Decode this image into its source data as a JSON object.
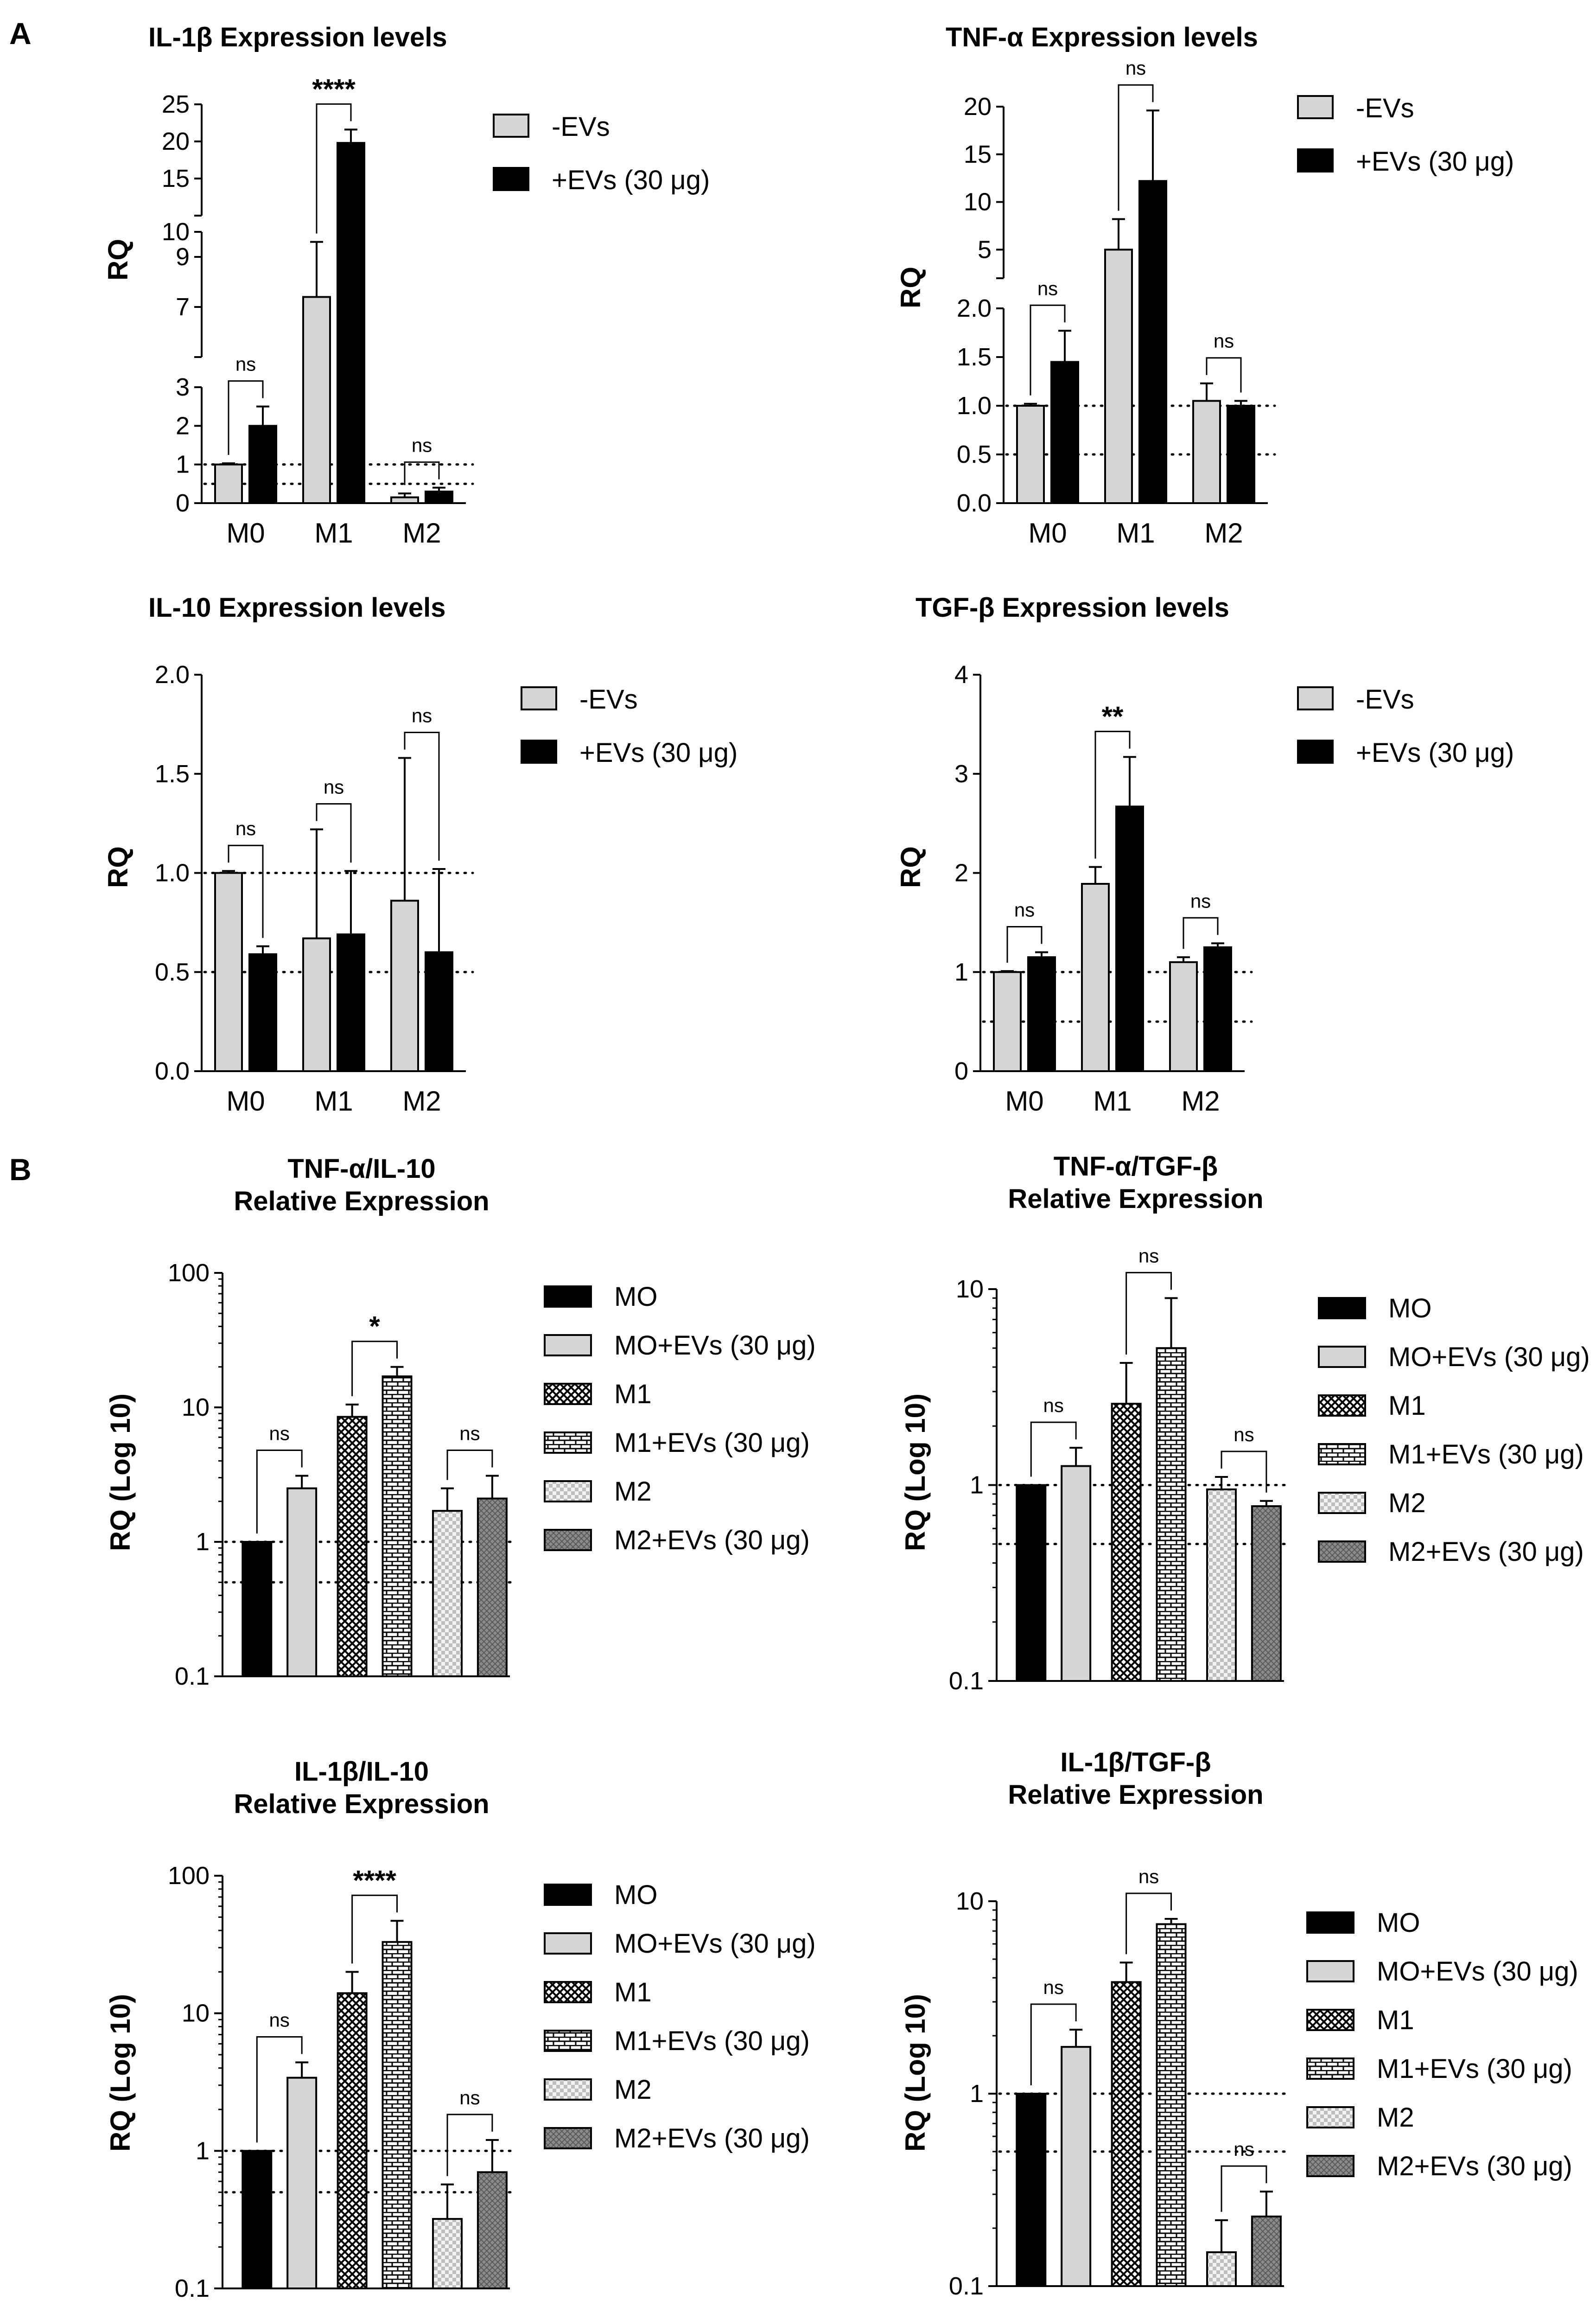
{
  "panels": [
    {
      "letter": "A"
    },
    {
      "letter": "B"
    }
  ],
  "colors": {
    "minus_evs": "#d6d6d6",
    "plus_evs": "#000000",
    "m2_fill": "#dadada",
    "m2ev_fill": "#7a7a7a"
  },
  "chart_data": [
    {
      "id": "il1b",
      "type": "bar",
      "title": "IL-1β Expression levels",
      "ylabel": "RQ",
      "categories": [
        "M0",
        "M1",
        "M2"
      ],
      "series": [
        {
          "name": "-EVs",
          "values": [
            1.0,
            7.4,
            0.15
          ],
          "errors": [
            0.03,
            2.2,
            0.1
          ]
        },
        {
          "name": "+EVs (30 μg)",
          "values": [
            2.0,
            19.8,
            0.3
          ],
          "errors": [
            0.5,
            1.8,
            0.1
          ]
        }
      ],
      "axis_segments": [
        {
          "range": [
            0,
            3
          ],
          "ticks": [
            "0",
            "1",
            "2",
            "3"
          ]
        },
        {
          "range": [
            5,
            10
          ],
          "ticks": [
            "7",
            "9"
          ]
        },
        {
          "range": [
            10,
            25
          ],
          "ticks": [
            "10",
            "15",
            "20",
            "25"
          ]
        }
      ],
      "reference_lines": [
        1,
        0.5
      ],
      "annotations": [
        {
          "groups": "M0",
          "label": "ns"
        },
        {
          "groups": "M1",
          "label": "****"
        },
        {
          "groups": "M2",
          "label": "ns"
        }
      ]
    },
    {
      "id": "tnfa",
      "type": "bar",
      "title": "TNF-α Expression levels",
      "ylabel": "RQ",
      "categories": [
        "M0",
        "M1",
        "M2"
      ],
      "series": [
        {
          "name": "-EVs",
          "values": [
            1.0,
            5.0,
            1.05
          ],
          "errors": [
            0.02,
            3.2,
            0.18
          ]
        },
        {
          "name": "+EVs (30 μg)",
          "values": [
            1.45,
            12.2,
            1.0
          ],
          "errors": [
            0.32,
            7.4,
            0.05
          ]
        }
      ],
      "axis_segments": [
        {
          "range": [
            0,
            2
          ],
          "ticks": [
            "0.0",
            "0.5",
            "1.0",
            "1.5",
            "2.0"
          ]
        },
        {
          "range": [
            2,
            20
          ],
          "ticks": [
            "5",
            "10",
            "15",
            "20"
          ]
        }
      ],
      "reference_lines": [
        1,
        0.5
      ],
      "annotations": [
        {
          "groups": "M0",
          "label": "ns"
        },
        {
          "groups": "M1",
          "label": "ns"
        },
        {
          "groups": "M2",
          "label": "ns"
        }
      ]
    },
    {
      "id": "il10",
      "type": "bar",
      "title": "IL-10 Expression levels",
      "ylabel": "RQ",
      "categories": [
        "M0",
        "M1",
        "M2"
      ],
      "series": [
        {
          "name": "-EVs",
          "values": [
            1.0,
            0.67,
            0.86
          ],
          "errors": [
            0.01,
            0.55,
            0.72
          ]
        },
        {
          "name": "+EVs (30 μg)",
          "values": [
            0.59,
            0.69,
            0.6
          ],
          "errors": [
            0.04,
            0.32,
            0.42
          ]
        }
      ],
      "ylim": [
        0,
        2.0
      ],
      "ticks": [
        "0.0",
        "0.5",
        "1.0",
        "1.5",
        "2.0"
      ],
      "reference_lines": [
        1,
        0.5
      ],
      "annotations": [
        {
          "groups": "M0",
          "label": "ns"
        },
        {
          "groups": "M1",
          "label": "ns"
        },
        {
          "groups": "M2",
          "label": "ns"
        }
      ]
    },
    {
      "id": "tgfb",
      "type": "bar",
      "title": "TGF-β Expression levels",
      "ylabel": "RQ",
      "categories": [
        "M0",
        "M1",
        "M2"
      ],
      "series": [
        {
          "name": "-EVs",
          "values": [
            1.0,
            1.89,
            1.1
          ],
          "errors": [
            0.01,
            0.17,
            0.05
          ]
        },
        {
          "name": "+EVs (30 μg)",
          "values": [
            1.15,
            2.67,
            1.25
          ],
          "errors": [
            0.05,
            0.5,
            0.04
          ]
        }
      ],
      "ylim": [
        0,
        4
      ],
      "ticks": [
        "0",
        "1",
        "2",
        "3",
        "4"
      ],
      "reference_lines": [
        1,
        0.5
      ],
      "annotations": [
        {
          "groups": "M0",
          "label": "ns"
        },
        {
          "groups": "M1",
          "label": "**"
        },
        {
          "groups": "M2",
          "label": "ns"
        }
      ]
    },
    {
      "id": "tnfa_il10",
      "type": "bar",
      "scale": "log10",
      "title": [
        "TNF-α/IL-10",
        "Relative Expression"
      ],
      "ylabel": "RQ (Log 10)",
      "ylim": [
        0.1,
        100
      ],
      "ticks": [
        "0.1",
        "1",
        "10",
        "100"
      ],
      "groups": [
        "MO",
        "MO+EVs (30 μg)",
        "M1",
        "M1+EVs (30 μg)",
        "M2",
        "M2+EVs (30 μg)"
      ],
      "values": [
        1.0,
        2.5,
        8.5,
        17.0,
        1.7,
        2.1
      ],
      "errors": [
        0.0,
        0.6,
        2.0,
        3.0,
        0.8,
        1.0
      ],
      "reference_lines": [
        1,
        0.5
      ],
      "annotations": [
        {
          "pair": [
            0,
            1
          ],
          "label": "ns"
        },
        {
          "pair": [
            2,
            3
          ],
          "label": "*"
        },
        {
          "pair": [
            4,
            5
          ],
          "label": "ns"
        }
      ]
    },
    {
      "id": "tnfa_tgfb",
      "type": "bar",
      "scale": "log10",
      "title": [
        "TNF-α/TGF-β",
        "Relative Expression"
      ],
      "ylabel": "RQ (Log 10)",
      "ylim": [
        0.1,
        10
      ],
      "ticks": [
        "0.1",
        "1",
        "10"
      ],
      "groups": [
        "MO",
        "MO+EVs (30 μg)",
        "M1",
        "M1+EVs (30 μg)",
        "M2",
        "M2+EVs (30 μg)"
      ],
      "values": [
        1.0,
        1.25,
        2.6,
        5.0,
        0.95,
        0.78
      ],
      "errors": [
        0.0,
        0.3,
        1.6,
        4.0,
        0.15,
        0.05
      ],
      "reference_lines": [
        1,
        0.5
      ],
      "annotations": [
        {
          "pair": [
            0,
            1
          ],
          "label": "ns"
        },
        {
          "pair": [
            2,
            3
          ],
          "label": "ns"
        },
        {
          "pair": [
            4,
            5
          ],
          "label": "ns"
        }
      ]
    },
    {
      "id": "il1b_il10",
      "type": "bar",
      "scale": "log10",
      "title": [
        "IL-1β/IL-10",
        "Relative Expression"
      ],
      "ylabel": "RQ (Log 10)",
      "ylim": [
        0.1,
        100
      ],
      "ticks": [
        "0.1",
        "1",
        "10",
        "100"
      ],
      "groups": [
        "MO",
        "MO+EVs (30 μg)",
        "M1",
        "M1+EVs (30 μg)",
        "M2",
        "M2+EVs (30 μg)"
      ],
      "values": [
        1.0,
        3.4,
        14.0,
        33.0,
        0.32,
        0.7
      ],
      "errors": [
        0.0,
        1.0,
        6.0,
        14.0,
        0.25,
        0.5
      ],
      "reference_lines": [
        1,
        0.5
      ],
      "annotations": [
        {
          "pair": [
            0,
            1
          ],
          "label": "ns"
        },
        {
          "pair": [
            2,
            3
          ],
          "label": "****"
        },
        {
          "pair": [
            4,
            5
          ],
          "label": "ns"
        }
      ]
    },
    {
      "id": "il1b_tgfb",
      "type": "bar",
      "scale": "log10",
      "title": [
        "IL-1β/TGF-β",
        "Relative Expression"
      ],
      "ylabel": "RQ (Log 10)",
      "ylim": [
        0.1,
        10
      ],
      "ticks": [
        "0.1",
        "1",
        "10"
      ],
      "groups": [
        "MO",
        "MO+EVs (30 μg)",
        "M1",
        "M1+EVs (30 μg)",
        "M2",
        "M2+EVs (30 μg)"
      ],
      "values": [
        1.0,
        1.75,
        3.8,
        7.6,
        0.15,
        0.23
      ],
      "errors": [
        0.0,
        0.4,
        1.0,
        0.5,
        0.07,
        0.08
      ],
      "reference_lines": [
        1,
        0.5
      ],
      "annotations": [
        {
          "pair": [
            0,
            1
          ],
          "label": "ns"
        },
        {
          "pair": [
            2,
            3
          ],
          "label": "ns"
        },
        {
          "pair": [
            4,
            5
          ],
          "label": "ns"
        }
      ]
    }
  ]
}
